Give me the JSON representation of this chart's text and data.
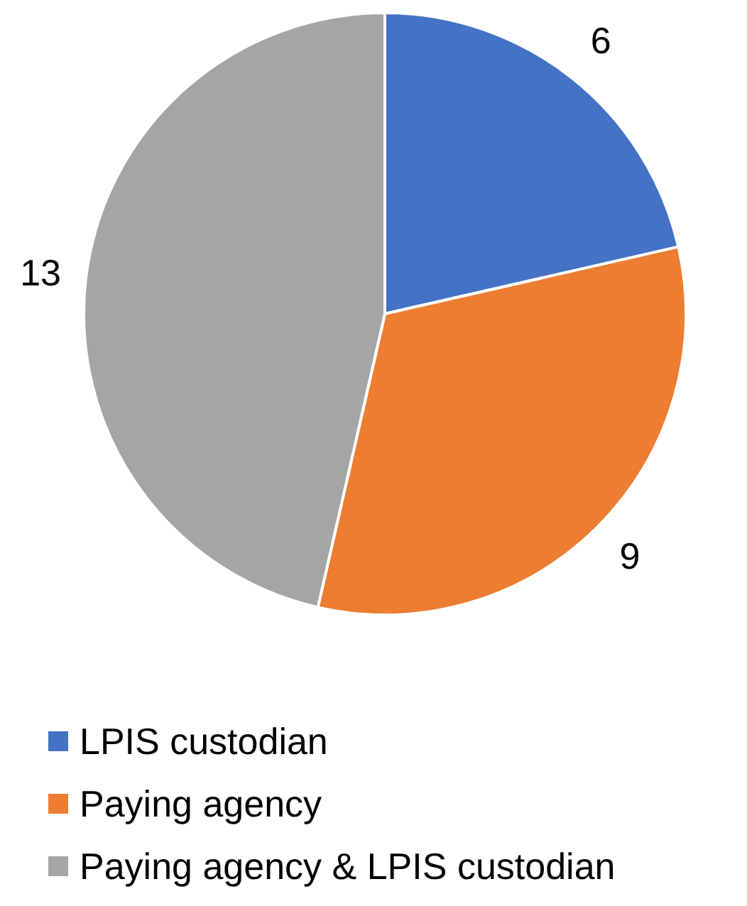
{
  "chart_data": {
    "type": "pie",
    "categories": [
      "LPIS custodian",
      "Paying agency",
      "Paying agency & LPIS custodian"
    ],
    "values": [
      6,
      9,
      13
    ],
    "colors": [
      "#4472c4",
      "#ed7d31",
      "#a5a5a5"
    ],
    "data_labels": true,
    "legend": "bottom"
  }
}
